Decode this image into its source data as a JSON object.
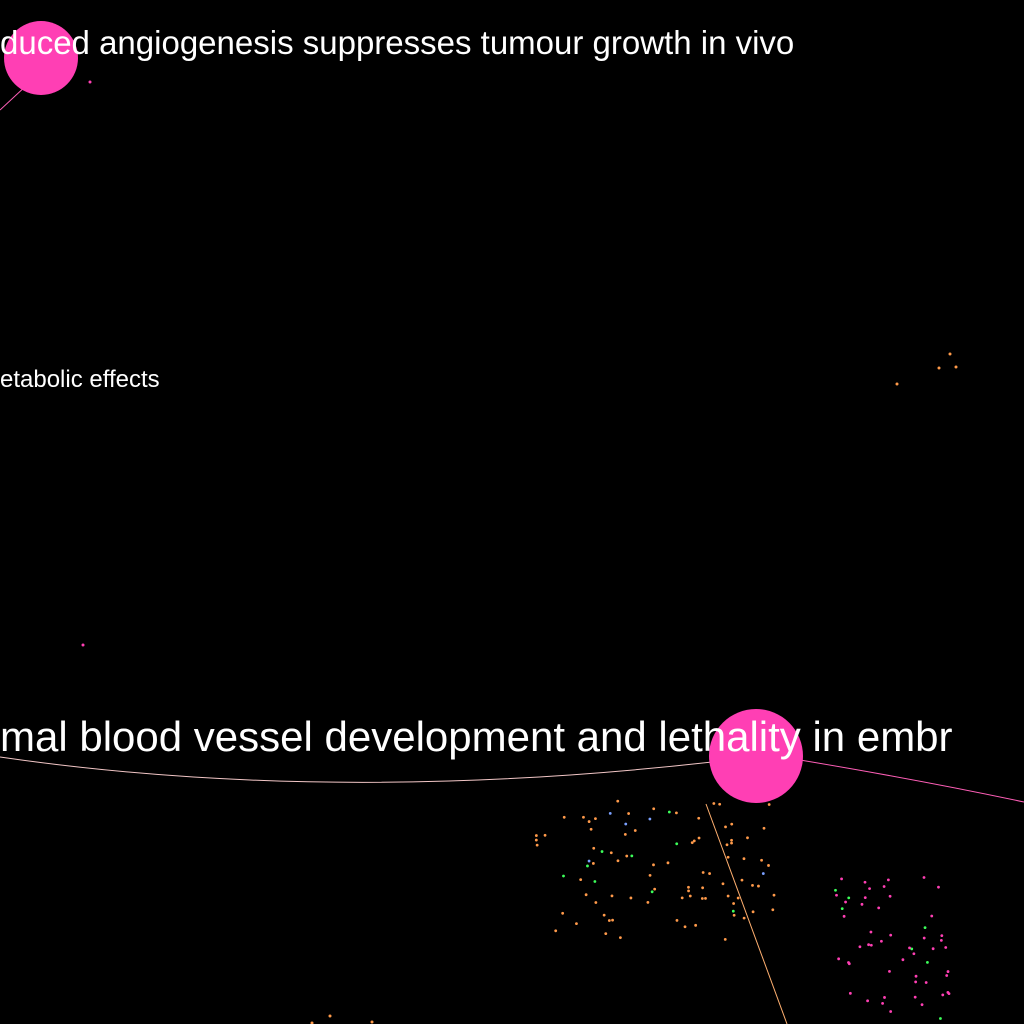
{
  "labels": {
    "top": "duced angiogenesis suppresses tumour growth in vivo",
    "middle": "etabolic effects",
    "bottom": "mal blood vessel development and lethality in embr"
  },
  "colors": {
    "background": "#000000",
    "hub_node": "#ff3fb4",
    "cluster_orange": "#ff9a4a",
    "cluster_green": "#3cff5a",
    "cluster_blue": "#7aa0ff",
    "cluster_cyan": "#3ce6e6",
    "cluster_pink": "#ff3fb4",
    "edge_pale": "#f3c7c7",
    "edge_pink": "#ff5fb8",
    "edge_orange": "#ffb070",
    "label_text": "#ffffff"
  }
}
